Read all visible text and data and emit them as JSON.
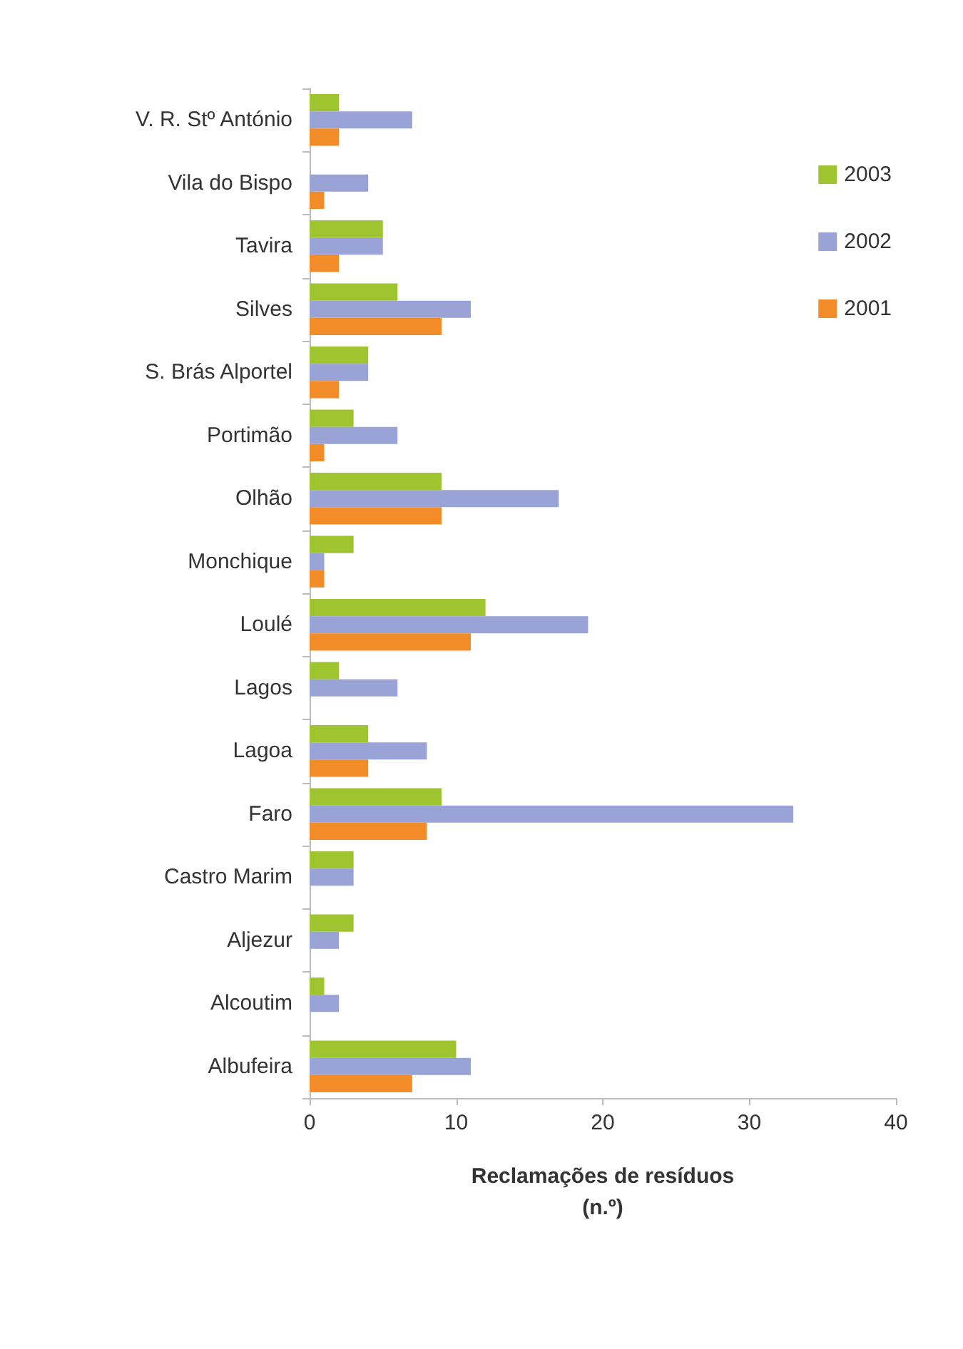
{
  "chart_data": {
    "type": "bar",
    "orientation": "horizontal",
    "xlabel": "Reclamações de resíduos\n(n.º)",
    "categories": [
      "V. R. Stº António",
      "Vila do Bispo",
      "Tavira",
      "Silves",
      "S. Brás Alportel",
      "Portimão",
      "Olhão",
      "Monchique",
      "Loulé",
      "Lagos",
      "Lagoa",
      "Faro",
      "Castro Marim",
      "Aljezur",
      "Alcoutim",
      "Albufeira"
    ],
    "series": [
      {
        "name": "2003",
        "color": "#9ec42f",
        "values": [
          2,
          0,
          5,
          6,
          4,
          3,
          9,
          3,
          12,
          2,
          4,
          9,
          3,
          3,
          1,
          10
        ]
      },
      {
        "name": "2002",
        "color": "#99a3d6",
        "values": [
          7,
          4,
          5,
          11,
          4,
          6,
          17,
          1,
          19,
          6,
          8,
          33,
          3,
          2,
          2,
          11
        ]
      },
      {
        "name": "2001",
        "color": "#f28c28",
        "values": [
          2,
          1,
          2,
          9,
          2,
          1,
          9,
          1,
          11,
          0,
          4,
          8,
          0,
          0,
          0,
          7
        ]
      }
    ],
    "xlim": [
      0,
      40
    ],
    "xticks": [
      0,
      10,
      20,
      30,
      40
    ],
    "grid": false,
    "legend": "top right"
  }
}
